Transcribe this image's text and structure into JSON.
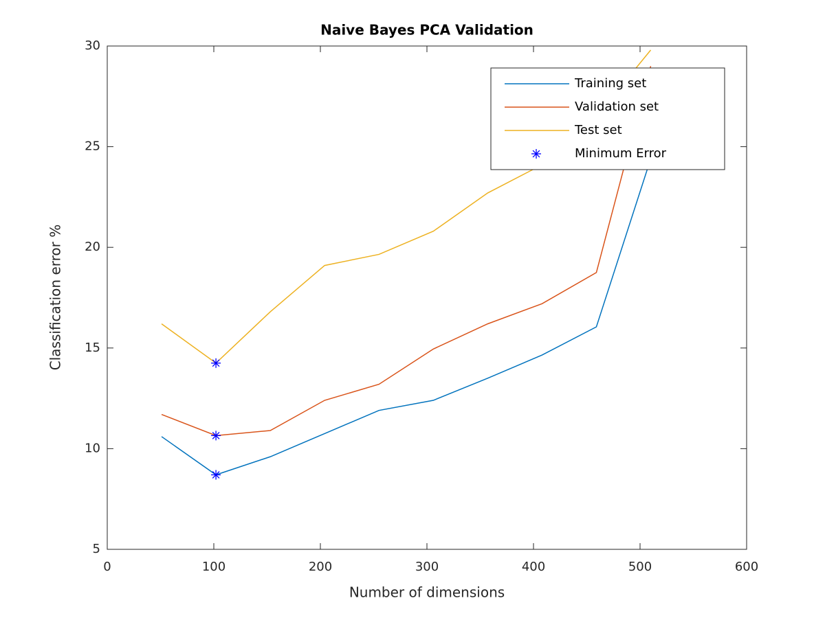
{
  "chart_data": {
    "type": "line",
    "title": "Naive Bayes PCA Validation",
    "x_label": "Number of dimensions",
    "y_label": "Classification error %",
    "x": [
      51,
      102,
      153,
      204,
      255,
      306,
      357,
      408,
      459,
      510
    ],
    "series": [
      {
        "name": "Training set",
        "color": "#0072bd",
        "values": [
          10.6,
          8.7,
          9.6,
          10.75,
          11.9,
          12.4,
          13.5,
          14.65,
          16.05,
          24.4
        ]
      },
      {
        "name": "Validation set",
        "color": "#d95319",
        "values": [
          11.7,
          10.65,
          10.9,
          12.4,
          13.2,
          14.95,
          16.2,
          17.2,
          18.75,
          29
        ]
      },
      {
        "name": "Test set",
        "color": "#edb120",
        "values": [
          16.2,
          14.25,
          16.8,
          19.1,
          19.65,
          20.8,
          22.7,
          24.1,
          26.5,
          29.8
        ]
      },
      {
        "name": "Minimum Error",
        "color": "#0000ff",
        "marker": "*",
        "x": [
          102,
          102,
          102
        ],
        "values": [
          8.7,
          10.65,
          14.25
        ]
      }
    ],
    "xlim": [
      0,
      600
    ],
    "xticks": [
      0,
      100,
      200,
      300,
      400,
      500,
      600
    ],
    "ylim": [
      5,
      30
    ],
    "yticks": [
      5,
      10,
      15,
      20,
      25,
      30
    ],
    "legend": "northeast"
  }
}
